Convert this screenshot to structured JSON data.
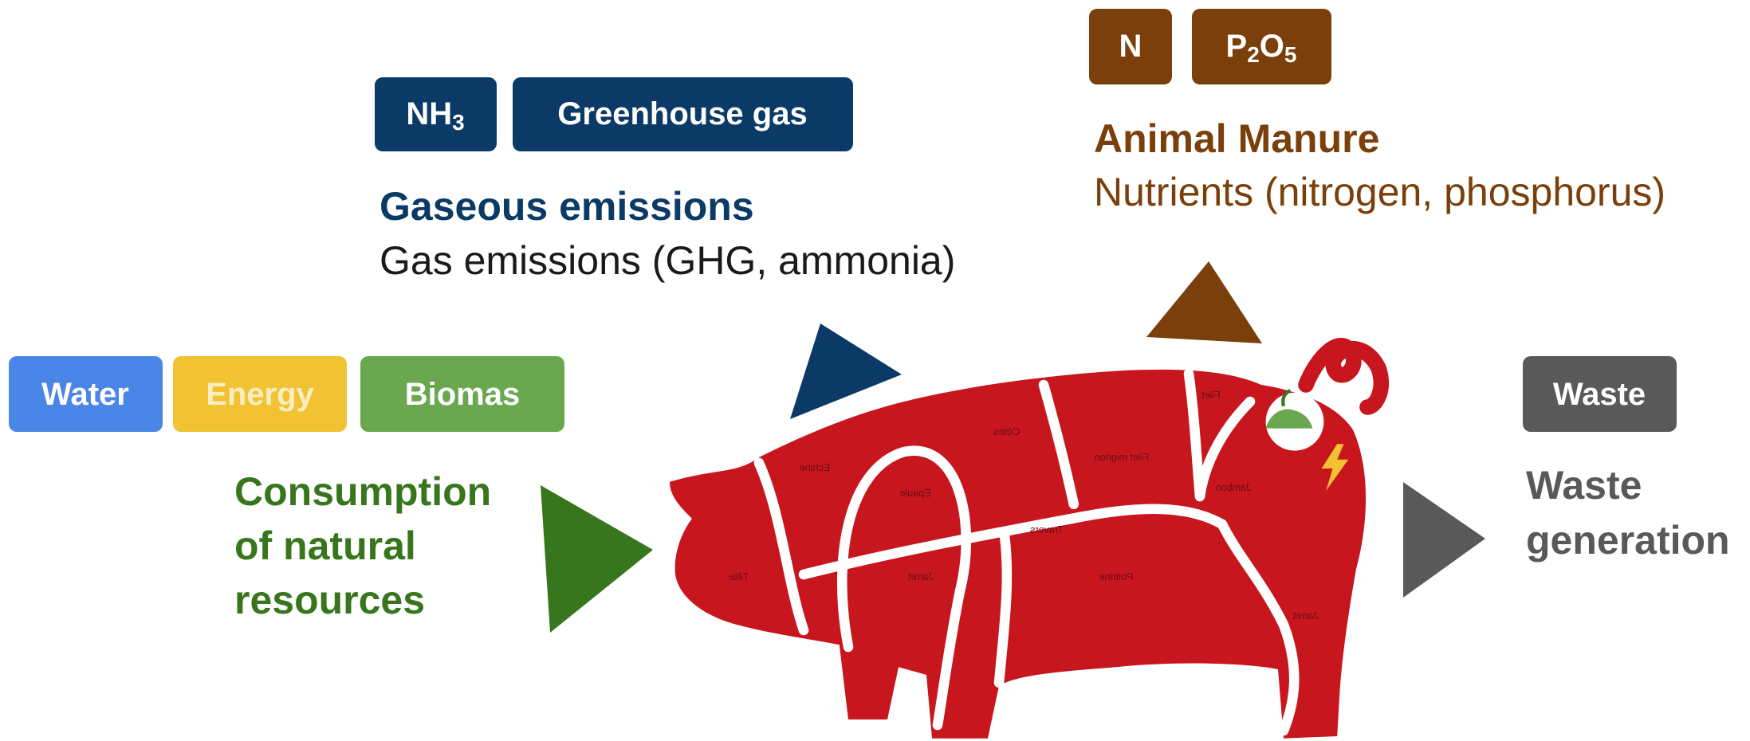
{
  "emissions": {
    "badges": [
      {
        "text": "NH",
        "sub": "3"
      },
      {
        "text": "Greenhouse gas"
      }
    ],
    "heading": "Gaseous emissions",
    "description": "Gas emissions (GHG, ammonia)"
  },
  "manure": {
    "badges": [
      {
        "text": "N"
      },
      {
        "text": "P",
        "sub": "2",
        "text2": "O",
        "sub2": "5"
      }
    ],
    "heading": "Animal Manure",
    "description": "Nutrients (nitrogen, phosphorus)"
  },
  "resources": {
    "badges": [
      "Water",
      "Energy",
      "Biomas"
    ],
    "heading": [
      "Consumption",
      "of natural",
      "resources"
    ]
  },
  "waste": {
    "badges": [
      "Waste"
    ],
    "heading": [
      "Waste",
      "generation"
    ]
  },
  "pig_cuts": [
    "Tête",
    "Echine",
    "Côtes",
    "Filet",
    "Filet mignon",
    "Epaule",
    "Travers",
    "Jarret",
    "Poitrine",
    "Jambon",
    "Jarret"
  ]
}
